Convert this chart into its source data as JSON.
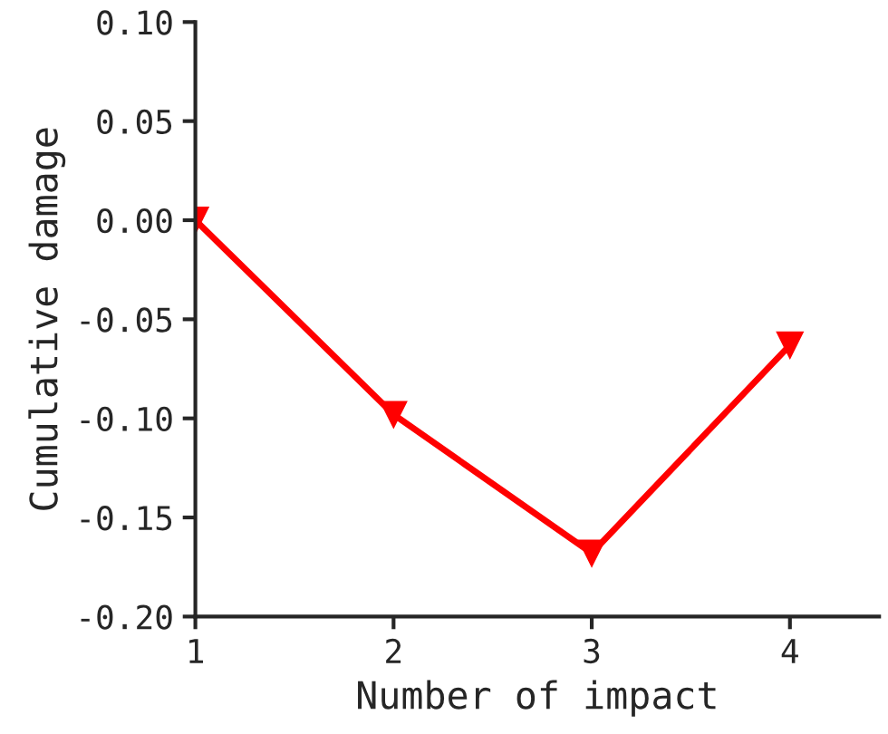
{
  "chart_data": {
    "type": "line",
    "xlabel": "Number of impact",
    "ylabel": "Cumulative damage",
    "x": [
      1,
      2,
      3,
      4
    ],
    "series": [
      {
        "color": "#ff0000",
        "values": [
          0.0,
          -0.098,
          -0.168,
          -0.063
        ]
      }
    ],
    "marker": "triangle_down",
    "line_style": "solid",
    "xlim": [
      1,
      4.45
    ],
    "xticks": [
      1,
      2,
      3,
      4
    ],
    "ylim": [
      -0.2,
      0.1
    ],
    "yticks": [
      {
        "value": -0.2,
        "label": "-0.20"
      },
      {
        "value": -0.15,
        "label": "-0.15"
      },
      {
        "value": -0.1,
        "label": "-0.10"
      },
      {
        "value": -0.05,
        "label": "-0.05"
      },
      {
        "value": 0,
        "label": "0.00"
      },
      {
        "value": 0.05,
        "label": "0.05"
      },
      {
        "value": 0.1,
        "label": "0.10"
      }
    ],
    "grid": false,
    "legend": false
  }
}
